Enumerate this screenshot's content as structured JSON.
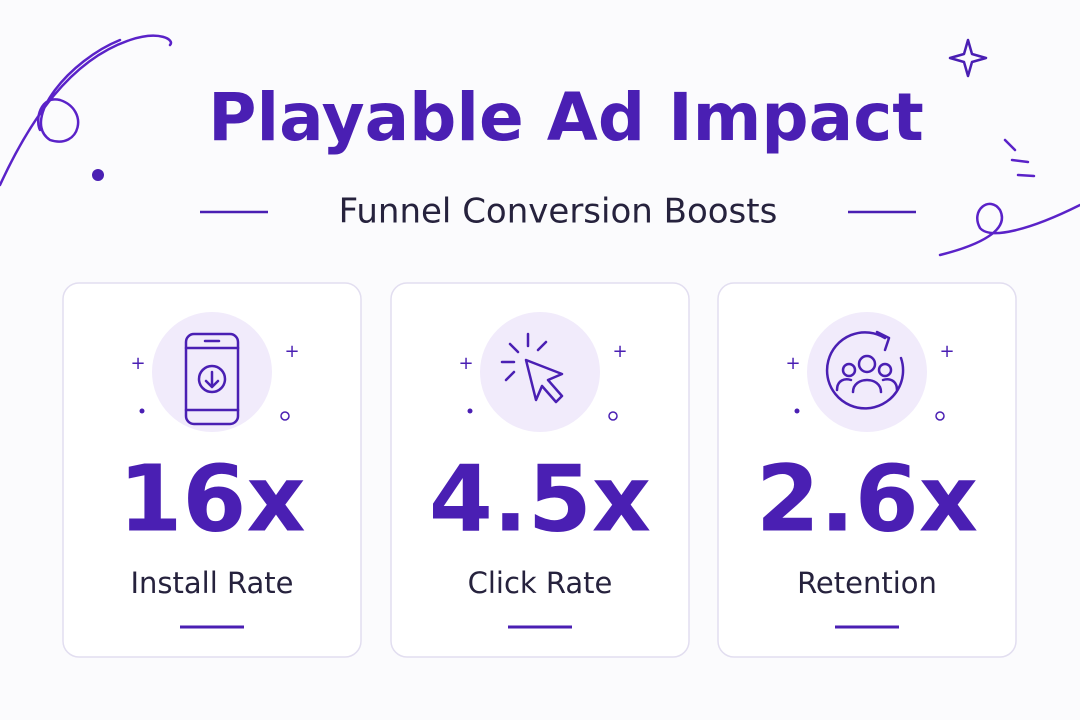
{
  "header": {
    "title": "Playable Ad Impact",
    "subtitle": "Funnel Conversion Boosts"
  },
  "cards": [
    {
      "value": "16x",
      "label": "Install Rate"
    },
    {
      "value": "4.5x",
      "label": "Click Rate"
    },
    {
      "value": "2.6x",
      "label": "Retention"
    }
  ]
}
